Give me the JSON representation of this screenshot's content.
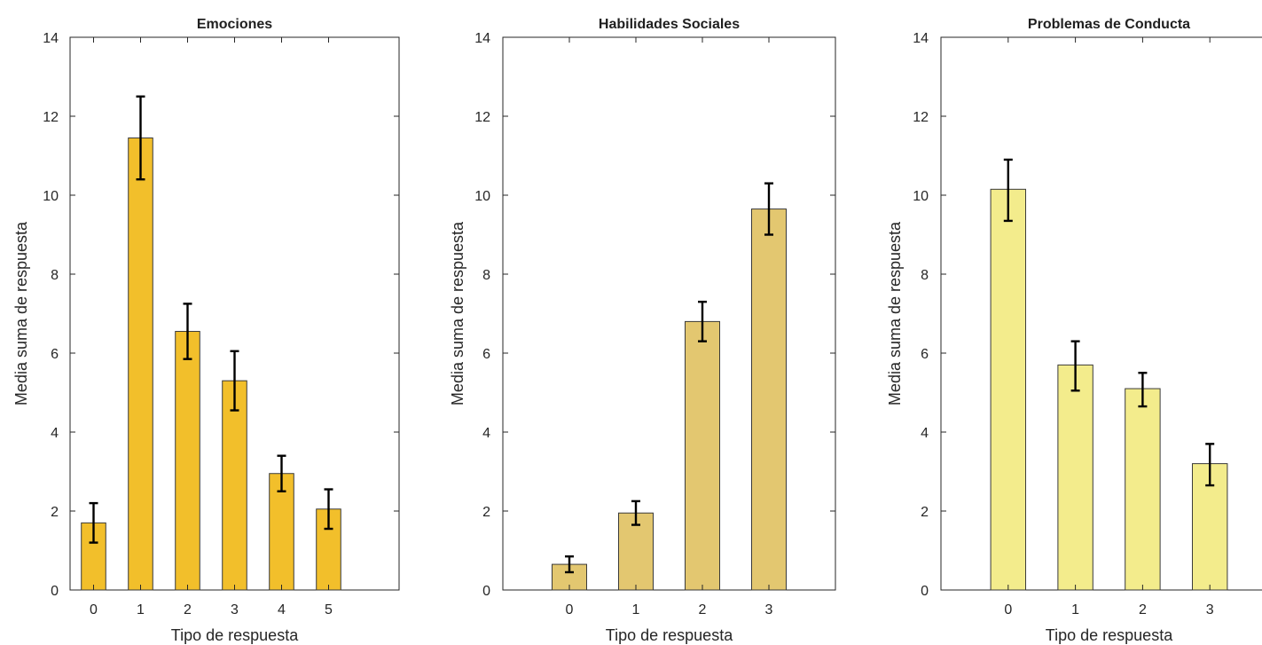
{
  "chart_data": [
    {
      "type": "bar",
      "title": "Emociones",
      "xlabel": "Tipo de respuesta",
      "ylabel": "Media suma de respuesta",
      "categories": [
        "0",
        "1",
        "2",
        "3",
        "4",
        "5"
      ],
      "values": [
        1.7,
        11.45,
        6.55,
        5.3,
        2.95,
        2.05
      ],
      "error_low": [
        1.2,
        10.4,
        5.85,
        4.55,
        2.5,
        1.55
      ],
      "error_high": [
        2.2,
        12.5,
        7.25,
        6.05,
        3.4,
        2.55
      ],
      "xlim": [
        -0.5,
        6.5
      ],
      "ylim": [
        0,
        14
      ],
      "yticks": [
        0,
        2,
        4,
        6,
        8,
        10,
        12,
        14
      ],
      "color": "#f2bf2b",
      "grid": false
    },
    {
      "type": "bar",
      "title": "Habilidades Sociales",
      "xlabel": "Tipo de respuesta",
      "ylabel": "Media suma de respuesta",
      "categories": [
        "0",
        "1",
        "2",
        "3"
      ],
      "values": [
        0.65,
        1.95,
        6.8,
        9.65
      ],
      "error_low": [
        0.45,
        1.65,
        6.3,
        9.0
      ],
      "error_high": [
        0.85,
        2.25,
        7.3,
        10.3
      ],
      "xlim": [
        -1,
        4
      ],
      "ylim": [
        0,
        14
      ],
      "yticks": [
        0,
        2,
        4,
        6,
        8,
        10,
        12,
        14
      ],
      "color": "#e3c770",
      "grid": false
    },
    {
      "type": "bar",
      "title": "Problemas de Conducta",
      "xlabel": "Tipo de respuesta",
      "ylabel": "Media suma de respuesta",
      "categories": [
        "0",
        "1",
        "2",
        "3"
      ],
      "values": [
        10.15,
        5.7,
        5.1,
        3.2
      ],
      "error_low": [
        9.35,
        5.05,
        4.65,
        2.65
      ],
      "error_high": [
        10.9,
        6.3,
        5.5,
        3.7
      ],
      "xlim": [
        -1,
        4
      ],
      "ylim": [
        0,
        14
      ],
      "yticks": [
        0,
        2,
        4,
        6,
        8,
        10,
        12,
        14
      ],
      "color": "#f3ec8c",
      "grid": false
    }
  ]
}
